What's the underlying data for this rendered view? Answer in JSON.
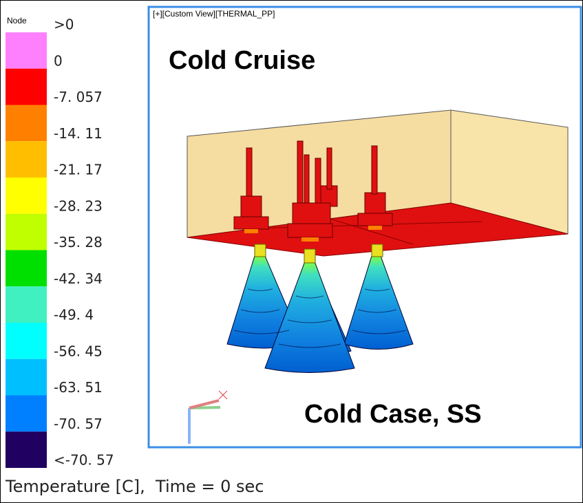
{
  "legend": {
    "header": "Node",
    "labels": [
      ">0",
      "0",
      "-7. 057",
      "-14. 11",
      "-21. 17",
      "-28. 23",
      "-35. 28",
      "-42. 34",
      "-49. 4",
      "-56. 45",
      "-63. 51",
      "-70. 57",
      "<-70. 57"
    ],
    "colors": [
      "#ff80ff",
      "#ff0000",
      "#ff8000",
      "#ffbf00",
      "#ffff00",
      "#bfff00",
      "#00e000",
      "#40f0c0",
      "#00ffff",
      "#00bfff",
      "#0080ff",
      "#200060"
    ]
  },
  "viewport": {
    "title": "[+][Custom View][THERMAL_PP]",
    "heading": "Cold Cruise",
    "caption": "Cold Case, SS"
  },
  "status": "Temperature [C],  Time = 0 sec"
}
